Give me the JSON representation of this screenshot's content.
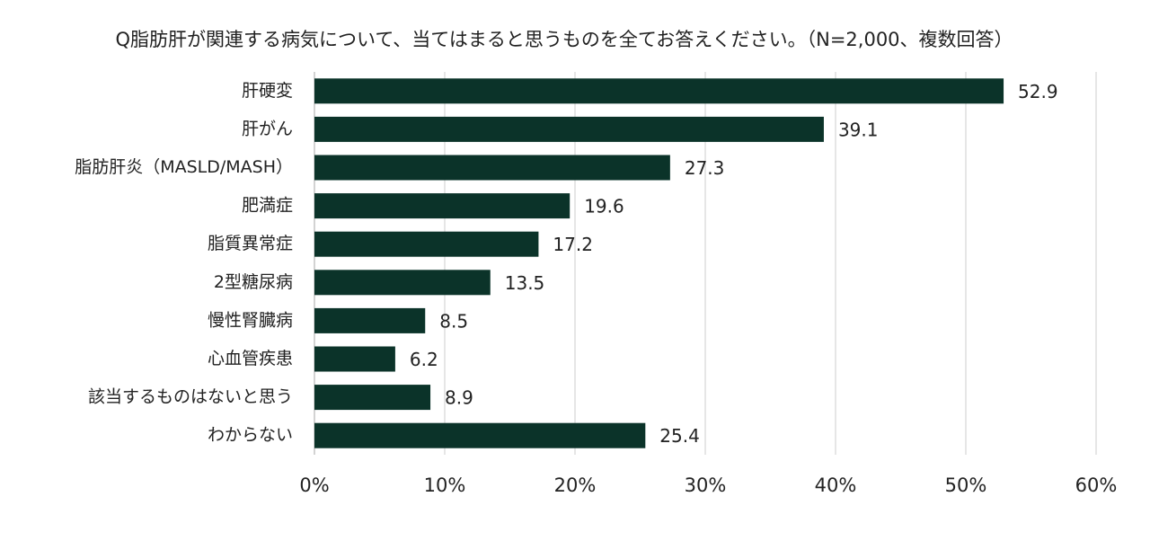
{
  "chart_data": {
    "type": "bar",
    "orientation": "horizontal",
    "title": "Q脂肪肝が関連する病気について、当てはまると思うものを全てお答えください。（N=2,000、複数回答）",
    "categories": [
      "肝硬変",
      "肝がん",
      "脂肪肝炎（MASLD/MASH）",
      "肥満症",
      "脂質異常症",
      "2型糖尿病",
      "慢性腎臓病",
      "心血管疾患",
      "該当するものはないと思う",
      "わからない"
    ],
    "values": [
      52.9,
      39.1,
      27.3,
      19.6,
      17.2,
      13.5,
      8.5,
      6.2,
      8.9,
      25.4
    ],
    "color": "#0b3329",
    "xlim": [
      0,
      60
    ],
    "xticks": [
      {
        "value": 0,
        "label": "0%"
      },
      {
        "value": 10,
        "label": "10%"
      },
      {
        "value": 20,
        "label": "20%"
      },
      {
        "value": 30,
        "label": "30%"
      },
      {
        "value": 40,
        "label": "40%"
      },
      {
        "value": 50,
        "label": "50%"
      },
      {
        "value": 60,
        "label": "60%"
      }
    ],
    "grid": true
  }
}
